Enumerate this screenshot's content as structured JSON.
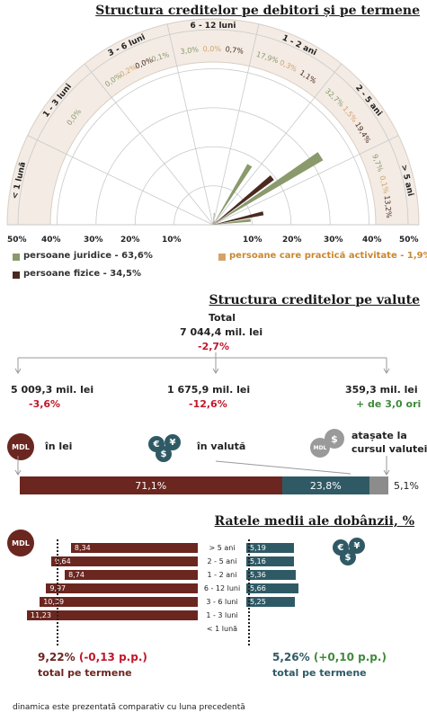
{
  "section1": {
    "title": "Structura creditelor pe debitori și pe termene",
    "segments": [
      {
        "label": "< 1 lună",
        "values": []
      },
      {
        "label": "1 - 3 luni",
        "values": [
          "0,0%"
        ]
      },
      {
        "label": "3 - 6 luni",
        "values": [
          "0,0%",
          "0,2%",
          "0,0%",
          "0,1%"
        ]
      },
      {
        "label": "6 - 12 luni",
        "values": [
          "3,0%",
          "0,0%",
          "0,7%"
        ]
      },
      {
        "label": "1 - 2 ani",
        "values": [
          "17,9%",
          "0,3%",
          "1,1%"
        ]
      },
      {
        "label": "2 - 5 ani",
        "values": [
          "32,7%",
          "1,5%",
          "19,4%"
        ]
      },
      {
        "label": "> 5 ani",
        "values": [
          "9,7%",
          "0,1%",
          "13,2%"
        ]
      }
    ],
    "axis_left": [
      "50%",
      "40%",
      "30%",
      "20%",
      "10%"
    ],
    "axis_right": [
      "10%",
      "20%",
      "30%",
      "40%",
      "50%"
    ],
    "legend": {
      "juridice": "persoane juridice - 63,6%",
      "fizice": "persoane fizice - 34,5%",
      "activitate": "persoane care practică activitate - 1,9%"
    },
    "colors": {
      "juridice": "#8a9a6c",
      "fizice": "#4a2a20",
      "activitate": "#d6a26a",
      "ring": "#f3ebe4"
    }
  },
  "chart_data": {
    "type": "polar-bar",
    "title": "Structura creditelor pe debitori și pe termene",
    "categories": [
      "< 1 lună",
      "1 - 3 luni",
      "3 - 6 luni",
      "6 - 12 luni",
      "1 - 2 ani",
      "2 - 5 ani",
      "> 5 ani"
    ],
    "series": [
      {
        "name": "persoane juridice - 63,6%",
        "values": [
          0.0,
          0.0,
          0.2,
          3.0,
          17.9,
          32.7,
          9.7
        ]
      },
      {
        "name": "persoane fizice - 34,5%",
        "values": [
          0.0,
          0.0,
          0.1,
          0.7,
          1.1,
          19.4,
          13.2
        ]
      },
      {
        "name": "persoane care practică activitate - 1,9%",
        "values": [
          0.0,
          0.0,
          0.0,
          0.0,
          0.3,
          1.5,
          0.1
        ]
      }
    ],
    "rlim": [
      0,
      50
    ]
  },
  "section2": {
    "title": "Structura creditelor pe valute",
    "total_label": "Total",
    "total_value": "7 044,4 mil. lei",
    "total_change": "-2,7%",
    "lei_value": "5 009,3 mil. lei",
    "lei_change": "-3,6%",
    "lei_label": "în lei",
    "val_value": "1 675,9 mil. lei",
    "val_change": "-12,6%",
    "val_label": "în valută",
    "att_value": "359,3 mil. lei",
    "att_change": "+ de 3,0 ori",
    "att_label1": "atașate la",
    "att_label2": "cursul valutei",
    "mdl": "MDL",
    "bar": {
      "lei": "71,1%",
      "valuta": "23,8%",
      "atasate": "5,1%"
    },
    "bar_values": [
      71.1,
      23.8,
      5.1
    ]
  },
  "section3": {
    "title": "Ratele medii ale dobânzii, %",
    "mdl": "MDL",
    "terms": [
      "> 5 ani",
      "2 - 5 ani",
      "1 - 2 ani",
      "6 - 12 luni",
      "3 - 6 luni",
      "1 - 3 luni",
      "< 1 lună"
    ],
    "lei_rates": [
      "8,34",
      "9,64",
      "8,74",
      "9,97",
      "10,39",
      "11,23",
      ""
    ],
    "lei_values": [
      8.34,
      9.64,
      8.74,
      9.97,
      10.39,
      11.23,
      0
    ],
    "val_rates": [
      "5,19",
      "5,16",
      "5,36",
      "5,66",
      "5,25",
      "",
      ""
    ],
    "val_values": [
      5.19,
      5.16,
      5.36,
      5.66,
      5.25,
      0,
      0
    ],
    "lei_total": "9,22%",
    "lei_total_change": "(-0,13 p.p.)",
    "val_total": "5,26%",
    "val_total_change": "(+0,10 p.p.)",
    "total_label": "total pe termene"
  },
  "footer": "dinamica este prezentată comparativ cu luna precedentă"
}
